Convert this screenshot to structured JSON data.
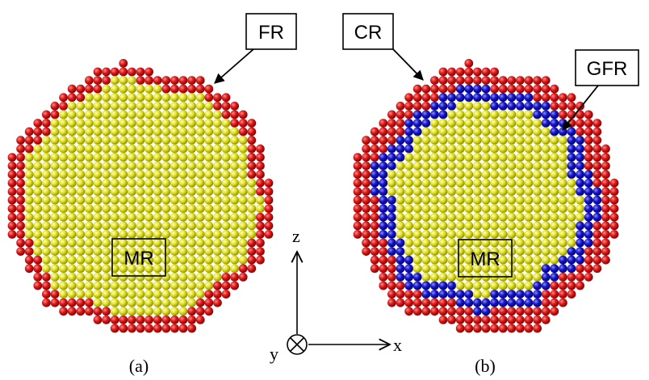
{
  "colors": {
    "red": "#cc1111",
    "yellow": "#e2e229",
    "blue": "#1717c8",
    "black": "#000000",
    "white": "#ffffff"
  },
  "panel_a": {
    "caption": "(a)",
    "callouts": {
      "surface": "FR",
      "interior": "MR"
    },
    "layers": [
      "red",
      "yellow"
    ]
  },
  "panel_b": {
    "caption": "(b)",
    "callouts": {
      "corner": "CR",
      "ring": "GFR",
      "interior": "MR"
    },
    "layers": [
      "red",
      "blue",
      "yellow"
    ]
  },
  "axes": {
    "z_label": "z",
    "x_label": "x",
    "y_label": "y",
    "y_symbol": "into-page-icon"
  }
}
